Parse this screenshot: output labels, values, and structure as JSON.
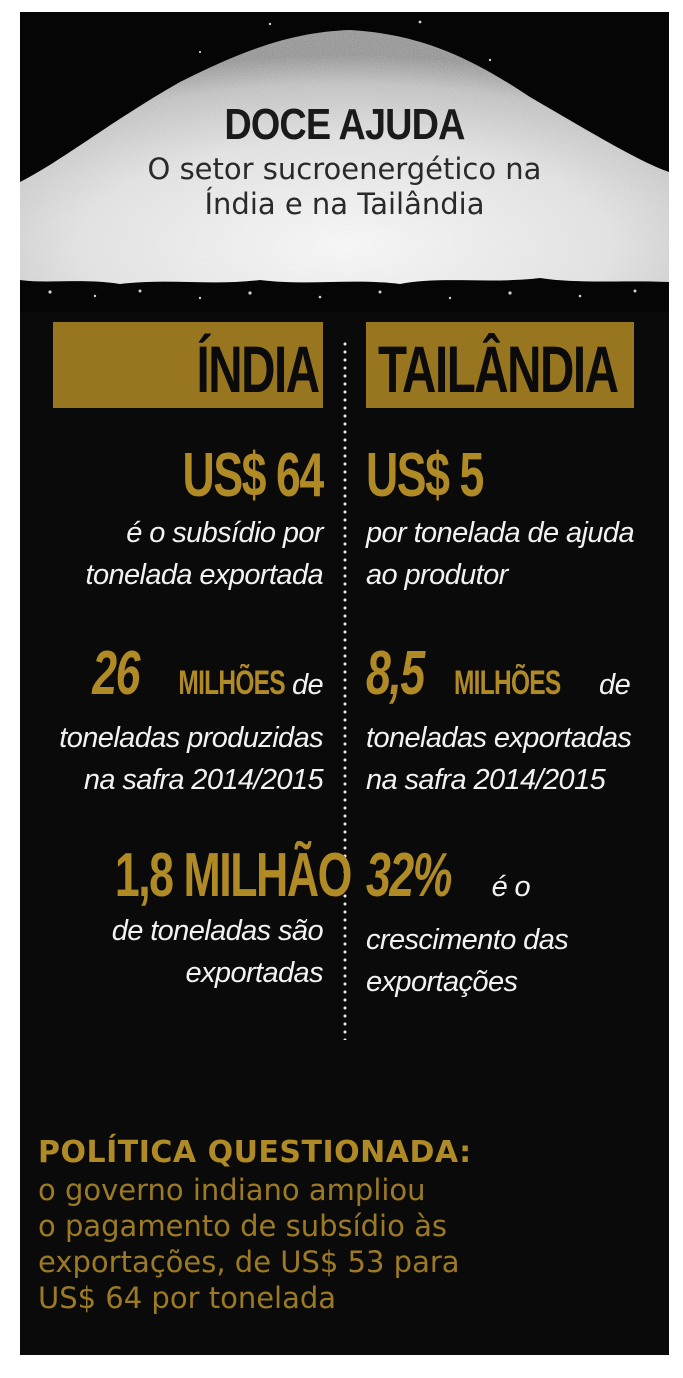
{
  "header": {
    "title": "DOCE AJUDA",
    "subtitle_line1": "O setor sucroenergético na",
    "subtitle_line2": "Índia e na Tailândia"
  },
  "columns": {
    "india": {
      "heading": "ÍNDIA",
      "stat1": {
        "value": "US$ 64",
        "line1": "é o subsídio por",
        "line2": "tonelada exportada"
      },
      "stat2": {
        "value": "26",
        "unit": "MILHÕES",
        "tail": "de",
        "line2": "toneladas produzidas",
        "line3": "na safra 2014/2015"
      },
      "stat3": {
        "value": "1,8 MILHÃO",
        "line1": "de toneladas são",
        "line2": "exportadas"
      }
    },
    "thailand": {
      "heading": "TAILÂNDIA",
      "stat1": {
        "value": "US$ 5",
        "line1": "por tonelada de ajuda",
        "line2": "ao produtor"
      },
      "stat2": {
        "value": "8,5",
        "unit": "MILHÕES",
        "tail": "de",
        "line2": "toneladas exportadas",
        "line3": "na safra 2014/2015"
      },
      "stat3": {
        "value": "32%",
        "tail": "é o",
        "line2": "crescimento das",
        "line3": "exportações"
      }
    }
  },
  "footer": {
    "title": "POLÍTICA QUESTIONADA:",
    "line1": "o governo indiano ampliou",
    "line2": "o pagamento de subsídio às",
    "line3": "exportações, de US$ 53 para",
    "line4": "US$ 64 por tonelada"
  },
  "colors": {
    "background": "#0a0a0a",
    "accent_gold": "#b08a25",
    "heading_box": "#987620",
    "text_light": "#f2f2f2"
  },
  "icons": [
    "sugar-pile-image",
    "dotted-divider"
  ]
}
